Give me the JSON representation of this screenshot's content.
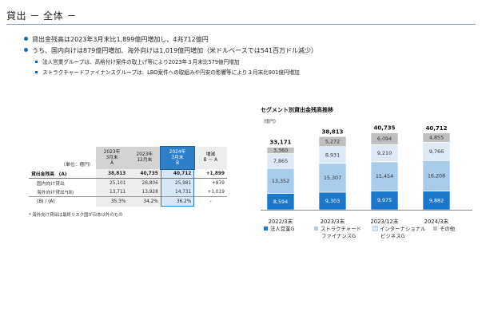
{
  "title": "貸出 － 全体 －",
  "bullets": [
    {
      "text": "貸出金残高は2023年3月末比1,899億円増加し、4兆712億円",
      "level": 1
    },
    {
      "text": "うち、国内向けは879億円増加、海外向けは1,019億円増加（米ドルベースでは541百万ドル減少）",
      "level": 1
    },
    {
      "text": "法人営業グループは、高格付け案件の取上げ等により2023年３月末比579億円増加",
      "level": 2
    },
    {
      "text": "ストラクチャードファイナンスグループは、LBO案件への取組みや円安の影響等により３月末比901億円増加",
      "level": 2
    }
  ],
  "table": {
    "unit": "（単位：億円）",
    "headers": [
      {
        "l1": "2023年",
        "l2": "3月末",
        "l3": "A"
      },
      {
        "l1": "2023年",
        "l2": "12月末",
        "l3": ""
      },
      {
        "l1": "2024年",
        "l2": "3月末",
        "l3": "B"
      },
      {
        "l1": "増減",
        "l2": "B － A",
        "l3": ""
      }
    ],
    "rows": [
      {
        "label": "貸出金残高　(A)",
        "cells": [
          "38,813",
          "40,735",
          "40,712",
          "+1,899"
        ]
      },
      {
        "label": "国内向け貸出",
        "cells": [
          "25,101",
          "26,806",
          "25,981",
          "+879"
        ]
      },
      {
        "label": "海外向け貸出*(B)",
        "cells": [
          "13,711",
          "13,928",
          "14,731",
          "+1,019"
        ]
      },
      {
        "label": "(B) / (A)",
        "cells": [
          "35.3%",
          "34.2%",
          "36.2%",
          "-"
        ]
      }
    ],
    "note": "* 海外向け貸出は最終リスク国が日本以外のもの"
  },
  "chart": {
    "title": "セグメント別貸出金残高推移",
    "unit": "（億円）",
    "colors": {
      "corporate": "#1a77c9",
      "structured": "#a8cdec",
      "international": "#ddeaf6",
      "other": "#bfbfbf"
    },
    "legend": [
      {
        "label": "法人営業G",
        "key": "corporate"
      },
      {
        "label": "ストラクチャード",
        "label2": "ファイナンスG",
        "key": "structured"
      },
      {
        "label": "インターナショナル",
        "label2": "ビジネスG",
        "key": "international"
      },
      {
        "label": "その他",
        "key": "other"
      }
    ]
  },
  "chart_data": {
    "type": "bar",
    "stacked": true,
    "categories": [
      "2022/3末",
      "2023/3末",
      "2023/12末",
      "2024/3末"
    ],
    "series": [
      {
        "name": "法人営業G",
        "values": [
          8594,
          9303,
          9975,
          9882
        ],
        "labels": [
          "8,594",
          "9,303",
          "9,975",
          "9,882"
        ]
      },
      {
        "name": "ストラクチャードファイナンスG",
        "values": [
          13352,
          15307,
          15454,
          16208
        ],
        "labels": [
          "13,352",
          "15,307",
          "15,454",
          "16,208"
        ]
      },
      {
        "name": "インターナショナルビジネスG",
        "values": [
          7865,
          8931,
          9210,
          9766
        ],
        "labels": [
          "7,865",
          "8,931",
          "9,210",
          "9,766"
        ]
      },
      {
        "name": "その他",
        "values": [
          3360,
          5272,
          6094,
          4855
        ],
        "labels": [
          "3,360",
          "5,272",
          "6,094",
          "4,855"
        ]
      }
    ],
    "totals": [
      "33,171",
      "38,813",
      "40,735",
      "40,712"
    ],
    "total_values": [
      33171,
      38813,
      40735,
      40712
    ],
    "ylim": [
      0,
      44000
    ],
    "grid": false,
    "legend_position": "bottom"
  }
}
